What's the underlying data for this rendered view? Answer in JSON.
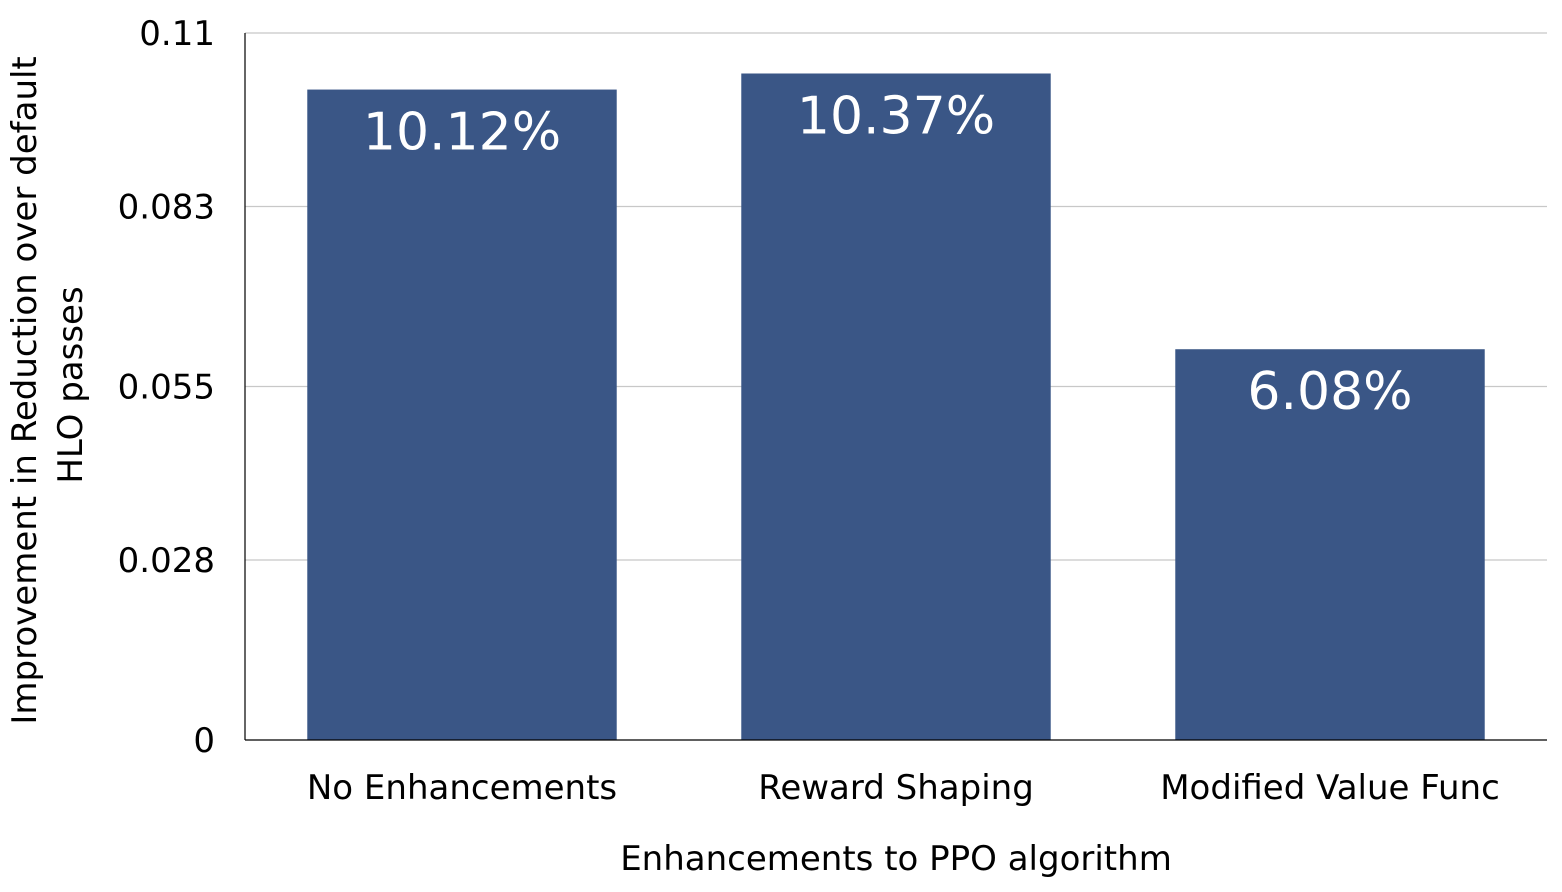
{
  "chart_data": {
    "type": "bar",
    "categories": [
      "No Enhancements",
      "Reward Shaping",
      "Modified Value Func"
    ],
    "values": [
      0.1012,
      0.1037,
      0.0608
    ],
    "data_labels": [
      "10.12%",
      "10.37%",
      "6.08%"
    ],
    "xlabel": "Enhancements to PPO algorithm",
    "ylabel_lines": [
      "Improvement in Reduction over default",
      "HLO passes"
    ],
    "ylim": [
      0,
      0.11
    ],
    "yticks": [
      0,
      0.028,
      0.055,
      0.083,
      0.11
    ],
    "ytick_labels": [
      "0",
      "0.028",
      "0.055",
      "0.083",
      "0.11"
    ],
    "grid": true,
    "legend": "none",
    "bar_color": "#3a5686"
  }
}
